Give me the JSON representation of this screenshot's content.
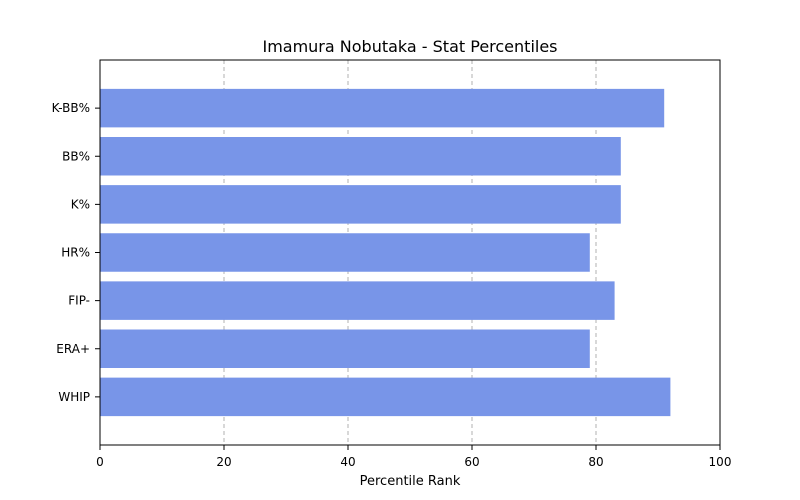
{
  "chart_data": {
    "type": "bar",
    "orientation": "horizontal",
    "title": "Imamura Nobutaka - Stat Percentiles",
    "xlabel": "Percentile Rank",
    "ylabel": "",
    "categories": [
      "K-BB%",
      "BB%",
      "K%",
      "HR%",
      "FIP-",
      "ERA+",
      "WHIP"
    ],
    "values": [
      91,
      84,
      84,
      79,
      83,
      79,
      92
    ],
    "xlim": [
      0,
      100
    ],
    "xticks": [
      0,
      20,
      40,
      60,
      80,
      100
    ],
    "grid": "x-dashed",
    "bar_color": "#7895e8"
  }
}
